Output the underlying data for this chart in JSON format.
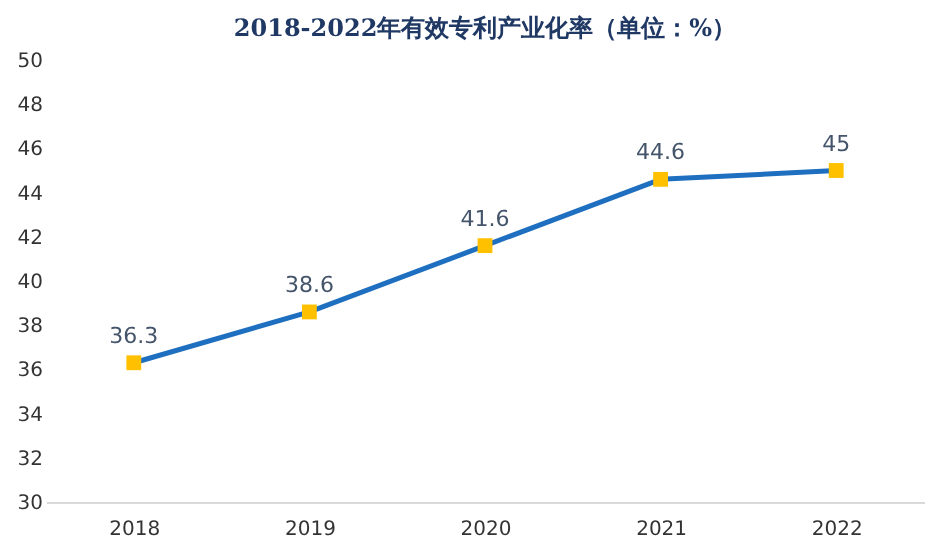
{
  "chart_data": {
    "type": "line",
    "title": "2018-2022年有效专利产业化率（单位：%）",
    "categories": [
      "2018",
      "2019",
      "2020",
      "2021",
      "2022"
    ],
    "series": [
      {
        "color": "#1f6fc0",
        "colors": [
          "#ffc000",
          "#ffc000",
          "#ffc000",
          "#ffc000",
          "#ffc000"
        ],
        "values": [
          36.3,
          38.6,
          41.6,
          44.6,
          45
        ]
      }
    ],
    "marker": "square",
    "line_style": "solid",
    "ylim": [
      30,
      50
    ],
    "yticks": [
      30,
      32,
      34,
      36,
      38,
      40,
      42,
      44,
      46,
      48,
      50
    ],
    "grid": false,
    "data_labels": true
  }
}
